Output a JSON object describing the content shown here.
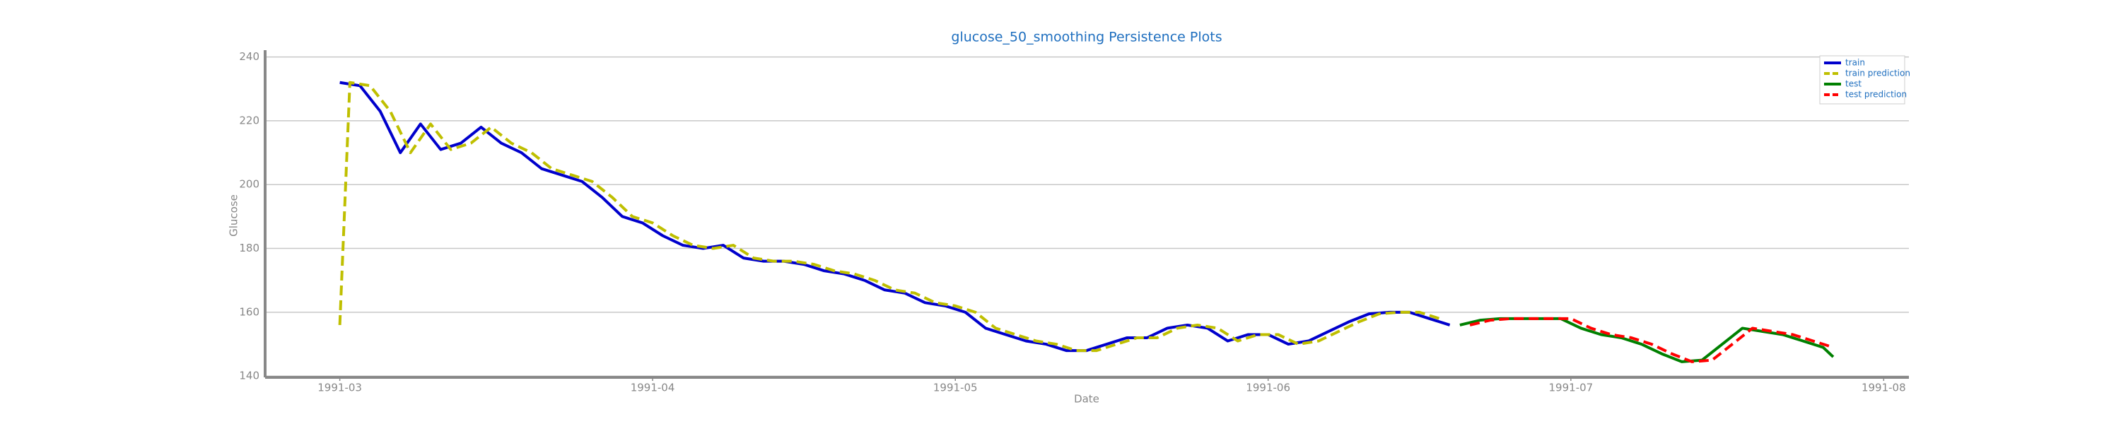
{
  "chart_data": {
    "type": "line",
    "title": "glucose_50_smoothing Persistence Plots",
    "xlabel": "Date",
    "ylabel": "Glucose",
    "xlim": [
      52.6,
      215.5
    ],
    "xticks": [
      {
        "value": 60,
        "label": "1991-03"
      },
      {
        "value": 91,
        "label": "1991-04"
      },
      {
        "value": 121,
        "label": "1991-05"
      },
      {
        "value": 152,
        "label": "1991-06"
      },
      {
        "value": 182,
        "label": "1991-07"
      },
      {
        "value": 213,
        "label": "1991-08"
      }
    ],
    "ylim": [
      139.6,
      240.8
    ],
    "yticks": [
      140,
      160,
      180,
      200,
      220,
      240
    ],
    "grid": true,
    "legend": "upper right",
    "series": [
      {
        "name": "train",
        "color": "#0000cc",
        "dash": false,
        "x": [
          60,
          62,
          64,
          66,
          68,
          70,
          72,
          74,
          76,
          78,
          80,
          82,
          84,
          86,
          88,
          90,
          92,
          94,
          96,
          98,
          100,
          102,
          104,
          106,
          108,
          110,
          112,
          114,
          116,
          118,
          120,
          122,
          124,
          126,
          128,
          130,
          132,
          134,
          136,
          138,
          140,
          142,
          144,
          146,
          148,
          150,
          152,
          154,
          156,
          158,
          160,
          162,
          164,
          166,
          168,
          170
        ],
        "values": [
          232,
          231,
          223,
          210,
          219,
          211,
          213,
          218,
          213,
          210,
          205,
          203,
          201,
          196,
          190,
          188,
          184,
          181,
          180,
          181,
          177,
          176,
          176,
          175,
          173,
          172,
          170,
          167,
          166,
          163,
          162,
          160,
          155,
          153,
          151,
          150,
          148,
          148,
          150,
          152,
          152,
          155,
          156,
          155,
          151,
          153,
          153,
          150,
          151,
          154,
          157,
          159.5,
          160,
          160,
          158,
          156
        ]
      },
      {
        "name": "train prediction",
        "color": "#bfbf00",
        "dash": true,
        "x": [
          60,
          61,
          63,
          65,
          67,
          69,
          71,
          73,
          75,
          77,
          79,
          81,
          83,
          85,
          87,
          89,
          91,
          93,
          95,
          97,
          99,
          101,
          103,
          105,
          107,
          109,
          111,
          113,
          115,
          117,
          119,
          121,
          123,
          125,
          127,
          129,
          131,
          133,
          135,
          137,
          139,
          141,
          143,
          145,
          147,
          149,
          151,
          153,
          155,
          157,
          159,
          161,
          163,
          165,
          167,
          169
        ],
        "values": [
          156,
          232,
          231,
          223,
          210,
          219,
          211,
          213,
          218,
          213,
          210,
          205,
          203,
          201,
          196,
          190,
          188,
          184,
          181,
          180,
          181,
          177,
          176,
          176,
          175,
          173,
          172,
          170,
          167,
          166,
          163,
          162,
          160,
          155,
          153,
          151,
          150,
          148,
          148,
          150,
          152,
          152,
          155,
          156,
          155,
          151,
          153,
          153,
          150,
          151,
          154,
          157,
          159.5,
          160,
          160,
          158
        ]
      },
      {
        "name": "test",
        "color": "#008000",
        "dash": false,
        "x": [
          171,
          173,
          175,
          177,
          179,
          181,
          183,
          185,
          187,
          189,
          191,
          193,
          195,
          197,
          199,
          201,
          203,
          205,
          207,
          208
        ],
        "values": [
          156,
          157.5,
          158,
          158,
          158,
          158,
          155,
          153,
          152,
          150,
          147,
          144.5,
          145,
          150,
          155,
          154,
          153,
          151,
          149,
          146
        ]
      },
      {
        "name": "test prediction",
        "color": "#ff0000",
        "dash": true,
        "x": [
          172,
          174,
          176,
          178,
          180,
          182,
          184,
          186,
          188,
          190,
          192,
          194,
          196,
          198,
          200,
          202,
          204,
          206,
          208
        ],
        "values": [
          156,
          157.5,
          158,
          158,
          158,
          158,
          155,
          153,
          152,
          150,
          147,
          144.5,
          145,
          150,
          155,
          154,
          153,
          151,
          149
        ]
      }
    ]
  }
}
